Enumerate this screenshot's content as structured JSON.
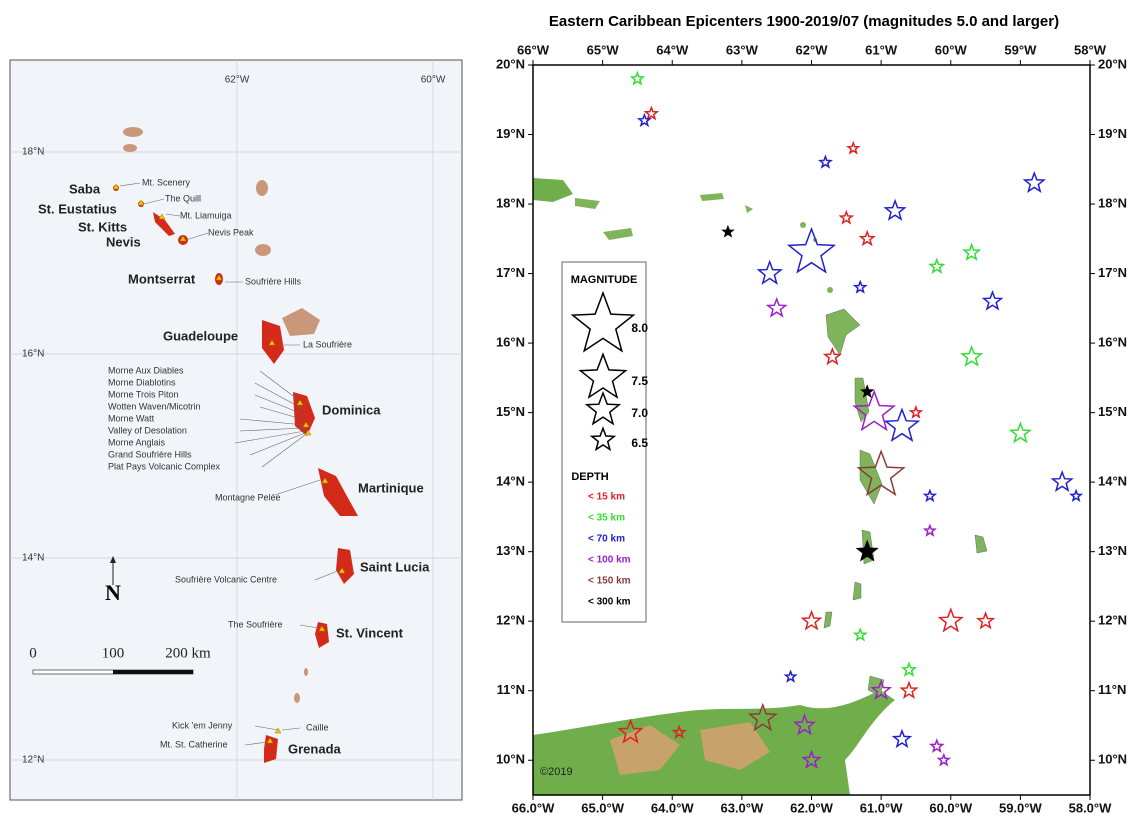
{
  "left_map": {
    "lon_labels": [
      "62°W",
      "60°W"
    ],
    "lat_labels": [
      "18°N",
      "16°N",
      "14°N",
      "12°N"
    ],
    "islands": [
      "Saba",
      "St. Eustatius",
      "St. Kitts",
      "Nevis",
      "Montserrat",
      "Guadeloupe",
      "Dominica",
      "Martinique",
      "Saint Lucia",
      "St. Vincent",
      "Grenada"
    ],
    "volcanoes": [
      "Mt. Scenery",
      "The Quill",
      "Mt. Liamuiga",
      "Nevis Peak",
      "Soufrière Hills",
      "La Soufrière",
      "Morne Aux Diables",
      "Morne Diablotins",
      "Morne Trois Piton",
      "Wotten Waven/Micotrin",
      "Morne Watt",
      "Valley of Desolation",
      "Morne Anglais",
      "Grand Soufrière Hills",
      "Plat Pays Volcanic Complex",
      "Montagne Pelée",
      "Soufrière Volcanic Centre",
      "The Soufrière",
      "Kick 'em Jenny",
      "Caille",
      "Mt. St. Catherine"
    ],
    "scale": [
      "0",
      "100",
      "200 km"
    ],
    "north": "N"
  },
  "right_map": {
    "title": "Eastern Caribbean Epicenters 1900-2019/07  (magnitudes 5.0 and larger)",
    "lon_range": [
      -66,
      -58
    ],
    "lat_range": [
      9.5,
      20
    ],
    "lon_ticks": [
      {
        "value": -66,
        "top": "66°W",
        "bottom": "66.0°W"
      },
      {
        "value": -65,
        "top": "65°W",
        "bottom": "65.0°W"
      },
      {
        "value": -64,
        "top": "64°W",
        "bottom": "64.0°W"
      },
      {
        "value": -63,
        "top": "63°W",
        "bottom": "63.0°W"
      },
      {
        "value": -62,
        "top": "62°W",
        "bottom": "62.0°W"
      },
      {
        "value": -61,
        "top": "61°W",
        "bottom": "61.0°W"
      },
      {
        "value": -60,
        "top": "60°W",
        "bottom": "60.0°W"
      },
      {
        "value": -59,
        "top": "59°W",
        "bottom": "59.0°W"
      },
      {
        "value": -58,
        "top": "58°W",
        "bottom": "58.0°W"
      }
    ],
    "lat_ticks": [
      {
        "value": 20,
        "label": "20°N"
      },
      {
        "value": 19,
        "label": "19°N"
      },
      {
        "value": 18,
        "label": "18°N"
      },
      {
        "value": 17,
        "label": "17°N"
      },
      {
        "value": 16,
        "label": "16°N"
      },
      {
        "value": 15,
        "label": "15°N"
      },
      {
        "value": 14,
        "label": "14°N"
      },
      {
        "value": 13,
        "label": "13°N"
      },
      {
        "value": 12,
        "label": "12°N"
      },
      {
        "value": 11,
        "label": "11°N"
      },
      {
        "value": 10,
        "label": "10°N"
      }
    ],
    "magnitude_title": "MAGNITUDE",
    "magnitudes": [
      {
        "value": 8.0,
        "label": "8.0"
      },
      {
        "value": 7.5,
        "label": "7.5"
      },
      {
        "value": 7.0,
        "label": "7.0"
      },
      {
        "value": 6.5,
        "label": "6.5"
      }
    ],
    "depth_title": "DEPTH",
    "depths": [
      {
        "label": "< 15 km",
        "color": "#e02020"
      },
      {
        "label": "< 35 km",
        "color": "#33dd33"
      },
      {
        "label": "< 70 km",
        "color": "#2020d0"
      },
      {
        "label": "< 100 km",
        "color": "#9a20c8"
      },
      {
        "label": "< 150 km",
        "color": "#8b3a3a"
      },
      {
        "label": "< 300 km",
        "color": "#000000"
      }
    ],
    "copyright": "©2019",
    "epicenters": [
      {
        "lon": -62.0,
        "lat": 17.3,
        "mag": 7.5,
        "depth": 2
      },
      {
        "lon": -61.0,
        "lat": 14.1,
        "mag": 7.5,
        "depth": 4
      },
      {
        "lon": -61.1,
        "lat": 15.0,
        "mag": 7.3,
        "depth": 3
      },
      {
        "lon": -60.7,
        "lat": 14.8,
        "mag": 7.0,
        "depth": 2
      },
      {
        "lon": -61.2,
        "lat": 13.0,
        "mag": 6.3,
        "depth": 5
      },
      {
        "lon": -62.6,
        "lat": 17.0,
        "mag": 6.5,
        "depth": 2
      },
      {
        "lon": -62.5,
        "lat": 16.5,
        "mag": 6.2,
        "depth": 3
      },
      {
        "lon": -60.8,
        "lat": 17.9,
        "mag": 6.3,
        "depth": 2
      },
      {
        "lon": -59.4,
        "lat": 16.6,
        "mag": 6.2,
        "depth": 2
      },
      {
        "lon": -58.8,
        "lat": 18.3,
        "mag": 6.3,
        "depth": 2
      },
      {
        "lon": -59.7,
        "lat": 17.3,
        "mag": 6.0,
        "depth": 1
      },
      {
        "lon": -59.7,
        "lat": 15.8,
        "mag": 6.3,
        "depth": 1
      },
      {
        "lon": -59.0,
        "lat": 14.7,
        "mag": 6.3,
        "depth": 1
      },
      {
        "lon": -58.4,
        "lat": 14.0,
        "mag": 6.3,
        "depth": 2
      },
      {
        "lon": -61.7,
        "lat": 15.8,
        "mag": 6.0,
        "depth": 0
      },
      {
        "lon": -64.6,
        "lat": 10.4,
        "mag": 6.5,
        "depth": 0
      },
      {
        "lon": -62.7,
        "lat": 10.6,
        "mag": 6.7,
        "depth": 4
      },
      {
        "lon": -62.1,
        "lat": 10.5,
        "mag": 6.3,
        "depth": 3
      },
      {
        "lon": -62.0,
        "lat": 12.0,
        "mag": 6.2,
        "depth": 0
      },
      {
        "lon": -60.0,
        "lat": 12.0,
        "mag": 6.5,
        "depth": 0
      },
      {
        "lon": -59.5,
        "lat": 12.0,
        "mag": 6.0,
        "depth": 0
      },
      {
        "lon": -61.0,
        "lat": 11.0,
        "mag": 6.2,
        "depth": 3
      },
      {
        "lon": -60.6,
        "lat": 11.0,
        "mag": 6.0,
        "depth": 0
      },
      {
        "lon": -60.7,
        "lat": 10.3,
        "mag": 6.1,
        "depth": 2
      },
      {
        "lon": -62.0,
        "lat": 10.0,
        "mag": 6.1,
        "depth": 3
      },
      {
        "lon": -61.2,
        "lat": 17.5,
        "mag": 5.8,
        "depth": 0
      },
      {
        "lon": -64.3,
        "lat": 19.3,
        "mag": 5.6,
        "depth": 0
      },
      {
        "lon": -64.5,
        "lat": 19.8,
        "mag": 5.6,
        "depth": 1
      },
      {
        "lon": -63.2,
        "lat": 17.6,
        "mag": 5.0,
        "depth": 5
      },
      {
        "lon": -64.4,
        "lat": 19.2,
        "mag": 5.5,
        "depth": 2
      },
      {
        "lon": -60.2,
        "lat": 17.1,
        "mag": 5.8,
        "depth": 1
      },
      {
        "lon": -61.8,
        "lat": 18.6,
        "mag": 5.5,
        "depth": 2
      },
      {
        "lon": -61.4,
        "lat": 18.8,
        "mag": 5.4,
        "depth": 0
      },
      {
        "lon": -61.5,
        "lat": 17.8,
        "mag": 5.6,
        "depth": 0
      },
      {
        "lon": -61.3,
        "lat": 16.8,
        "mag": 5.5,
        "depth": 2
      },
      {
        "lon": -60.3,
        "lat": 13.3,
        "mag": 5.3,
        "depth": 3
      },
      {
        "lon": -60.3,
        "lat": 13.8,
        "mag": 5.4,
        "depth": 2
      },
      {
        "lon": -63.9,
        "lat": 10.4,
        "mag": 5.5,
        "depth": 0
      },
      {
        "lon": -61.2,
        "lat": 15.3,
        "mag": 5.4,
        "depth": 5
      },
      {
        "lon": -60.5,
        "lat": 15.0,
        "mag": 5.4,
        "depth": 0
      },
      {
        "lon": -61.3,
        "lat": 11.8,
        "mag": 5.5,
        "depth": 1
      },
      {
        "lon": -60.6,
        "lat": 11.3,
        "mag": 5.7,
        "depth": 1
      },
      {
        "lon": -60.1,
        "lat": 10.0,
        "mag": 5.4,
        "depth": 3
      },
      {
        "lon": -60.2,
        "lat": 10.2,
        "mag": 5.6,
        "depth": 3
      },
      {
        "lon": -62.3,
        "lat": 11.2,
        "mag": 5.3,
        "depth": 2
      },
      {
        "lon": -58.2,
        "lat": 13.8,
        "mag": 5.3,
        "depth": 2
      }
    ]
  }
}
